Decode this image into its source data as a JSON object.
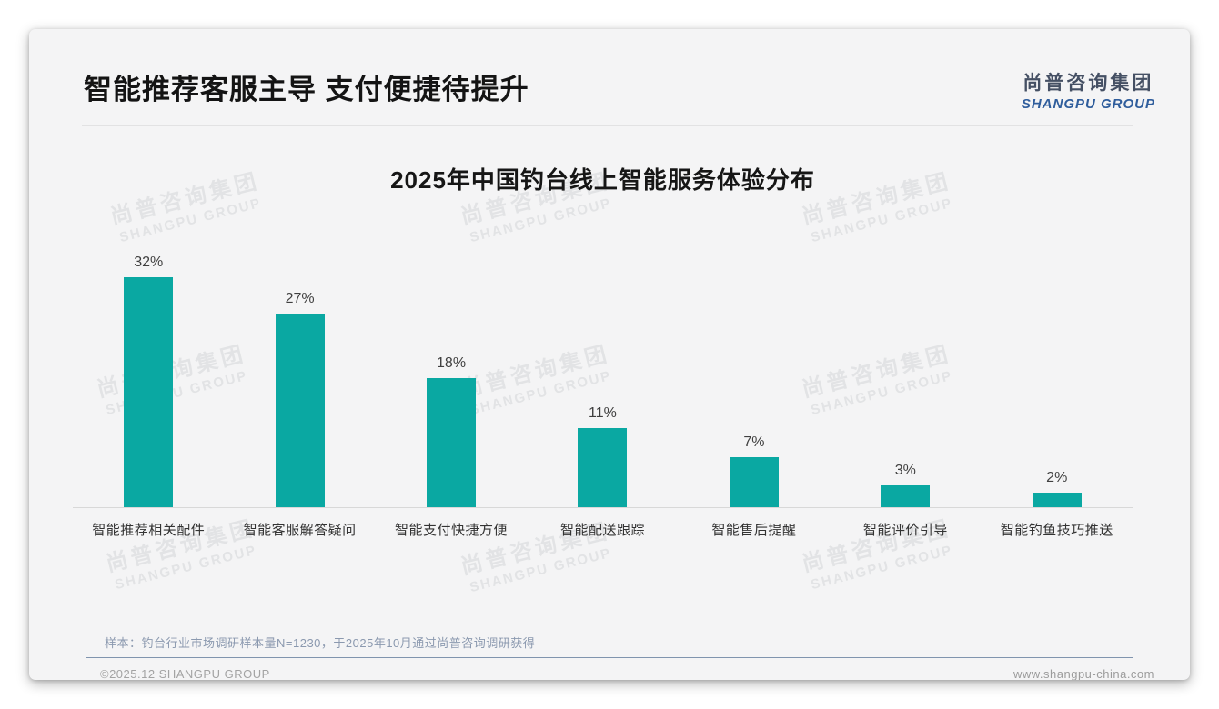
{
  "header": {
    "title": "智能推荐客服主导 支付便捷待提升",
    "logo_cn": "尚普咨询集团",
    "logo_en": "SHANGPU GROUP"
  },
  "chart_data": {
    "type": "bar",
    "title": "2025年中国钓台线上智能服务体验分布",
    "categories": [
      "智能推荐相关配件",
      "智能客服解答疑问",
      "智能支付快捷方便",
      "智能配送跟踪",
      "智能售后提醒",
      "智能评价引导",
      "智能钓鱼技巧推送"
    ],
    "values": [
      32,
      27,
      18,
      11,
      7,
      3,
      2
    ],
    "value_labels": [
      "32%",
      "27%",
      "18%",
      "11%",
      "7%",
      "3%",
      "2%"
    ],
    "unit": "%",
    "ylim": [
      0,
      35
    ],
    "grid": false,
    "legend": false,
    "bar_color": "#0aa8a2",
    "axis_line_color": "#d8d8d8"
  },
  "watermark": {
    "cn": "尚普咨询集团",
    "en": "SHANGPU GROUP"
  },
  "footer": {
    "note": "样本：钓台行业市场调研样本量N=1230，于2025年10月通过尚普咨询调研获得",
    "copyright": "©2025.12 SHANGPU GROUP",
    "website": "www.shangpu-china.com"
  },
  "colors": {
    "accent_teal": "#0aa8a2",
    "logo_blue": "#2f5d9c",
    "logo_dark": "#455064",
    "note_blue_gray": "#8b99af",
    "footer_divider_blue": "#8094ae",
    "card_background": "#f4f4f5"
  }
}
